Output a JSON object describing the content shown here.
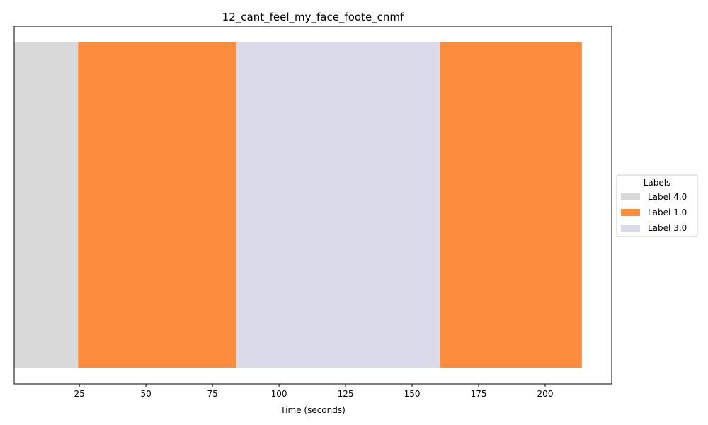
{
  "chart_data": {
    "type": "bar",
    "orientation": "horizontal-timeline",
    "title": "12_cant_feel_my_face_foote_cnmf",
    "xlabel": "Time (seconds)",
    "ylabel": "",
    "xlim": [
      0.5,
      225
    ],
    "x_ticks": [
      25,
      50,
      75,
      100,
      125,
      150,
      175,
      200
    ],
    "x_tick_labels": [
      "25",
      "50",
      "75",
      "100",
      "125",
      "150",
      "175",
      "200"
    ],
    "segments": [
      {
        "start": 0.5,
        "end": 24.5,
        "label": "Label 4.0"
      },
      {
        "start": 24.5,
        "end": 84.0,
        "label": "Label 1.0"
      },
      {
        "start": 84.0,
        "end": 160.5,
        "label": "Label 3.0"
      },
      {
        "start": 160.5,
        "end": 213.8,
        "label": "Label 1.0"
      }
    ],
    "legend": {
      "title": "Labels",
      "placement": "center-right-outside",
      "entries": [
        {
          "name": "Label 4.0",
          "color": "#d9d9d9"
        },
        {
          "name": "Label 1.0",
          "color": "#fd8d3c"
        },
        {
          "name": "Label 3.0",
          "color": "#dadaeb"
        }
      ]
    },
    "grid": false
  }
}
